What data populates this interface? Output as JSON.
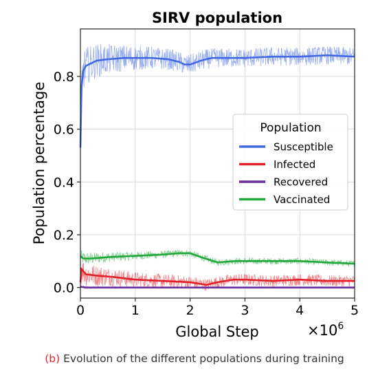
{
  "chart_data": {
    "type": "line",
    "title": "SIRV population",
    "xlabel": "Global Step",
    "ylabel": "Population percentage",
    "x_multiplier_label": "×10",
    "x_multiplier_exp": "6",
    "xlim": [
      0,
      5
    ],
    "ylim": [
      -0.04,
      0.98
    ],
    "x_ticks": [
      "0",
      "1",
      "2",
      "3",
      "4",
      "5"
    ],
    "y_ticks": [
      "0.0",
      "0.2",
      "0.4",
      "0.6",
      "0.8"
    ],
    "grid": true,
    "legend": {
      "title": "Population",
      "placement": "center-right"
    },
    "series": [
      {
        "name": "Susceptible",
        "color": "#4169e1",
        "noise": 0.035,
        "x": [
          0,
          0.02,
          0.05,
          0.1,
          0.2,
          0.3,
          0.5,
          0.8,
          1.0,
          1.3,
          1.6,
          1.8,
          1.9,
          2.0,
          2.2,
          2.4,
          2.6,
          3.0,
          3.5,
          4.0,
          4.5,
          5.0
        ],
        "values": [
          0.53,
          0.76,
          0.82,
          0.84,
          0.85,
          0.86,
          0.865,
          0.87,
          0.87,
          0.87,
          0.865,
          0.855,
          0.845,
          0.845,
          0.86,
          0.87,
          0.87,
          0.87,
          0.875,
          0.875,
          0.88,
          0.875
        ]
      },
      {
        "name": "Infected",
        "color": "#e32028",
        "noise": 0.022,
        "x": [
          0,
          0.02,
          0.1,
          0.3,
          0.6,
          1.0,
          1.5,
          2.0,
          2.3,
          2.5,
          2.8,
          3.0,
          3.5,
          4.0,
          4.5,
          5.0
        ],
        "values": [
          0.02,
          0.07,
          0.05,
          0.045,
          0.04,
          0.03,
          0.025,
          0.02,
          0.01,
          0.02,
          0.03,
          0.03,
          0.025,
          0.03,
          0.025,
          0.025
        ]
      },
      {
        "name": "Recovered",
        "color": "#6a2ea0",
        "noise": 0.002,
        "x": [
          0,
          0.1,
          1.0,
          2.0,
          3.0,
          4.0,
          5.0
        ],
        "values": [
          0.003,
          0.0,
          0.0,
          0.0,
          0.0,
          0.0,
          0.0
        ]
      },
      {
        "name": "Vaccinated",
        "color": "#22a83a",
        "noise": 0.012,
        "x": [
          0,
          0.05,
          0.2,
          0.5,
          1.0,
          1.5,
          1.8,
          2.0,
          2.2,
          2.5,
          2.8,
          3.0,
          3.5,
          4.0,
          4.5,
          5.0
        ],
        "values": [
          0.12,
          0.11,
          0.11,
          0.115,
          0.12,
          0.125,
          0.13,
          0.13,
          0.115,
          0.095,
          0.1,
          0.1,
          0.1,
          0.1,
          0.095,
          0.09
        ]
      }
    ]
  },
  "caption": {
    "letter": "(b)",
    "text": "Evolution of the different populations during training"
  }
}
